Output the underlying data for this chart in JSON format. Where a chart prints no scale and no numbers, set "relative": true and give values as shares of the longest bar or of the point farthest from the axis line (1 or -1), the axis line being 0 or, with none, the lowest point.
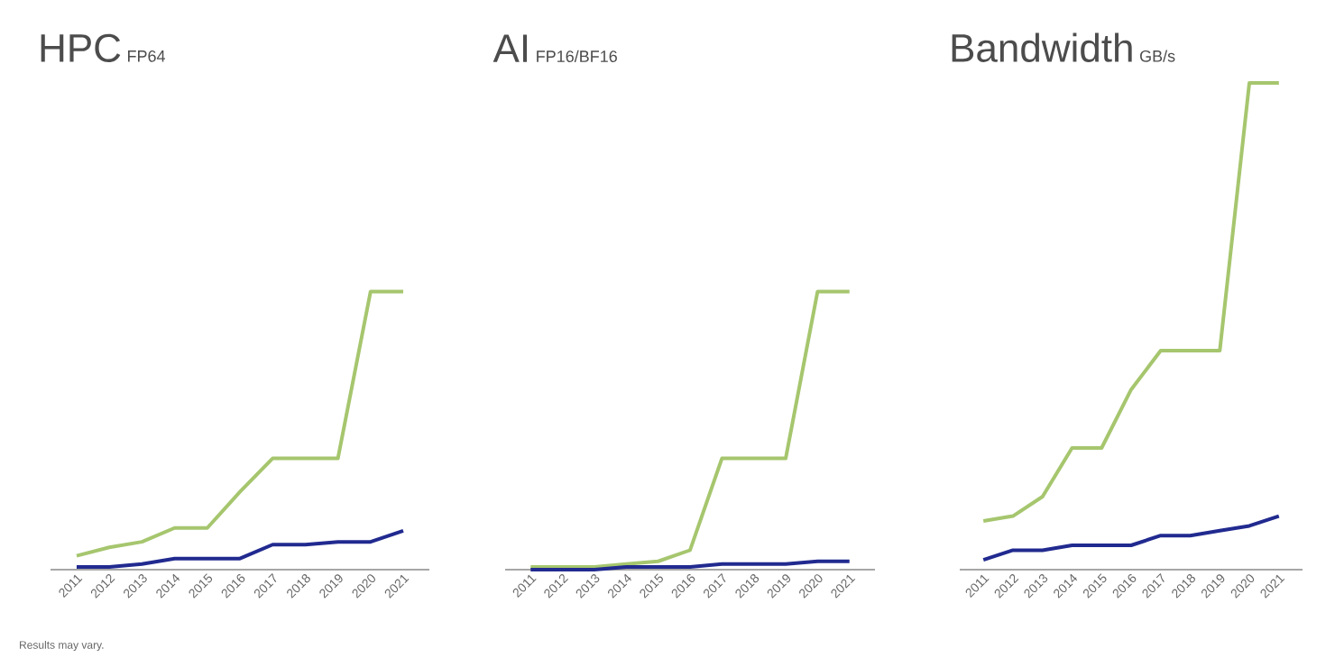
{
  "chart_data": [
    {
      "type": "line",
      "title": "HPC",
      "subtitle": "FP64",
      "relative": true,
      "tick_labels": "x",
      "categories": [
        "2011",
        "2012",
        "2013",
        "2014",
        "2015",
        "2016",
        "2017",
        "2018",
        "2019",
        "2020",
        "2021"
      ],
      "series": [
        {
          "color": "#a6c66e",
          "values": [
            0.05,
            0.08,
            0.1,
            0.15,
            0.15,
            0.28,
            0.4,
            0.4,
            0.4,
            1.0,
            1.0
          ]
        },
        {
          "color": "#212a8f",
          "values": [
            0.01,
            0.01,
            0.02,
            0.04,
            0.04,
            0.04,
            0.09,
            0.09,
            0.1,
            0.1,
            0.14
          ]
        }
      ],
      "annotations": [
        "Results may vary."
      ]
    },
    {
      "type": "line",
      "title": "AI",
      "subtitle": "FP16/BF16",
      "relative": true,
      "tick_labels": "x",
      "categories": [
        "2011",
        "2012",
        "2013",
        "2014",
        "2015",
        "2016",
        "2017",
        "2018",
        "2019",
        "2020",
        "2021"
      ],
      "series": [
        {
          "color": "#a6c66e",
          "values": [
            0.01,
            0.01,
            0.01,
            0.02,
            0.03,
            0.07,
            0.4,
            0.4,
            0.4,
            1.0,
            1.0
          ]
        },
        {
          "color": "#212a8f",
          "values": [
            0.0,
            0.0,
            0.0,
            0.01,
            0.01,
            0.01,
            0.02,
            0.02,
            0.02,
            0.03,
            0.03
          ]
        }
      ]
    },
    {
      "type": "line",
      "title": "Bandwidth",
      "subtitle": "GB/s",
      "relative": true,
      "tick_labels": "x",
      "categories": [
        "2011",
        "2012",
        "2013",
        "2014",
        "2015",
        "2016",
        "2017",
        "2018",
        "2019",
        "2020",
        "2021"
      ],
      "series": [
        {
          "color": "#a6c66e",
          "values": [
            0.1,
            0.11,
            0.15,
            0.25,
            0.25,
            0.37,
            0.45,
            0.45,
            0.45,
            1.0,
            1.0
          ]
        },
        {
          "color": "#212a8f",
          "values": [
            0.02,
            0.04,
            0.04,
            0.05,
            0.05,
            0.05,
            0.07,
            0.07,
            0.08,
            0.09,
            0.11
          ]
        }
      ]
    }
  ]
}
